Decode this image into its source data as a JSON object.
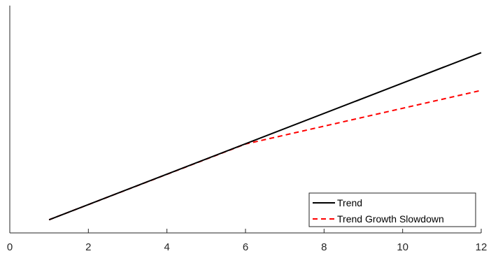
{
  "chart_data": {
    "type": "line",
    "title": "",
    "xlabel": "",
    "ylabel": "",
    "xlim": [
      0,
      12
    ],
    "ylim": [
      0,
      1
    ],
    "xticks": [
      "0",
      "2",
      "4",
      "6",
      "8",
      "10",
      "12"
    ],
    "yticks_visible": false,
    "grid": false,
    "legend_position": "bottom-right",
    "series": [
      {
        "name": "Trend",
        "color": "#000000",
        "line_style": "solid",
        "x": [
          1,
          12
        ],
        "y": [
          0.058,
          0.793
        ]
      },
      {
        "name": "Trend Growth Slowdown",
        "color": "#ff0000",
        "line_style": "dashed",
        "x": [
          1,
          6,
          12
        ],
        "y": [
          0.058,
          0.391,
          0.627
        ]
      }
    ]
  }
}
